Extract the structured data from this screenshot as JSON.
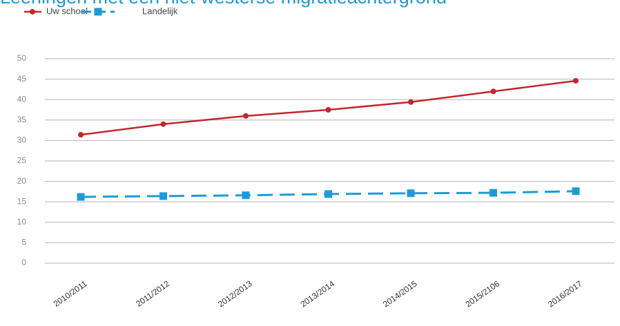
{
  "chart_data": {
    "type": "line",
    "title": "Leerlingen met een niet-westerse migratieachtergrond",
    "categories": [
      "2010/2011",
      "2011/2012",
      "2012/2013",
      "2013/2014",
      "2014/2015",
      "2015/2106",
      "2016/2017"
    ],
    "series": [
      {
        "name": "Uw school",
        "color": "#c1272d",
        "marker": "circle",
        "dashed": false,
        "values": [
          31.4,
          34,
          36,
          37.5,
          39.4,
          42,
          44.6
        ]
      },
      {
        "name": "Landelijk",
        "color": "#1b9bd7",
        "marker": "square",
        "dashed": true,
        "values": [
          16.2,
          16.4,
          16.6,
          16.9,
          17.1,
          17.2,
          17.6
        ]
      }
    ],
    "ylim": [
      0,
      50
    ],
    "yticks": [
      0,
      5,
      10,
      15,
      20,
      25,
      30,
      35,
      40,
      45,
      50
    ],
    "grid": true,
    "legend": "top-left"
  }
}
